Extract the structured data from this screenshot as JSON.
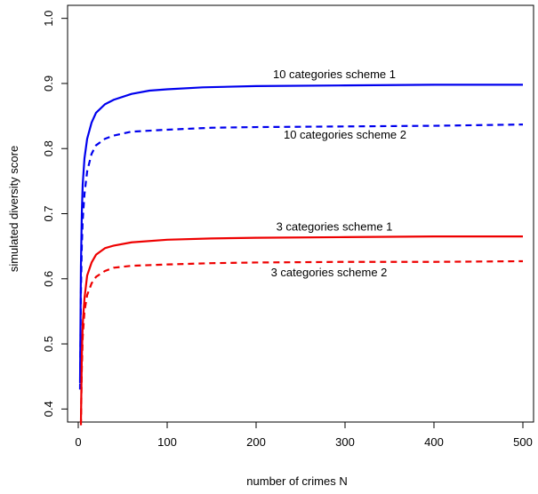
{
  "chart_data": {
    "type": "line",
    "title": "",
    "xlabel": "number of crimes N",
    "ylabel": "simulated diversity score",
    "xlim": [
      -12,
      512
    ],
    "ylim": [
      0.38,
      1.02
    ],
    "xticks": [
      0,
      100,
      200,
      300,
      400,
      500
    ],
    "yticks": [
      0.4,
      0.5,
      0.6,
      0.7,
      0.8,
      0.9,
      1.0
    ],
    "xtick_labels": [
      "0",
      "100",
      "200",
      "300",
      "400",
      "500"
    ],
    "ytick_labels": [
      "0.4",
      "0.5",
      "0.6",
      "0.7",
      "0.8",
      "0.9",
      "1.0"
    ],
    "grid": false,
    "legend": "none",
    "series": [
      {
        "name": "10 categories scheme 1",
        "color": "#0000ee",
        "dash": "solid",
        "label_at": {
          "x": 288,
          "y": 0.908
        },
        "points": [
          [
            2,
            0.44
          ],
          [
            3,
            0.62
          ],
          [
            4,
            0.7
          ],
          [
            5,
            0.745
          ],
          [
            7,
            0.785
          ],
          [
            10,
            0.815
          ],
          [
            15,
            0.84
          ],
          [
            20,
            0.855
          ],
          [
            30,
            0.868
          ],
          [
            40,
            0.875
          ],
          [
            60,
            0.884
          ],
          [
            80,
            0.889
          ],
          [
            100,
            0.891
          ],
          [
            140,
            0.894
          ],
          [
            200,
            0.896
          ],
          [
            300,
            0.897
          ],
          [
            400,
            0.898
          ],
          [
            500,
            0.898
          ]
        ]
      },
      {
        "name": "10 categories scheme 2",
        "color": "#0000ee",
        "dash": "dashed",
        "label_at": {
          "x": 300,
          "y": 0.815
        },
        "points": [
          [
            2,
            0.43
          ],
          [
            3,
            0.58
          ],
          [
            4,
            0.65
          ],
          [
            5,
            0.69
          ],
          [
            7,
            0.73
          ],
          [
            10,
            0.765
          ],
          [
            15,
            0.792
          ],
          [
            20,
            0.805
          ],
          [
            30,
            0.815
          ],
          [
            40,
            0.82
          ],
          [
            60,
            0.826
          ],
          [
            100,
            0.829
          ],
          [
            150,
            0.832
          ],
          [
            200,
            0.833
          ],
          [
            300,
            0.834
          ],
          [
            400,
            0.835
          ],
          [
            500,
            0.837
          ]
        ]
      },
      {
        "name": "3 categories scheme 1",
        "color": "#ee0000",
        "dash": "solid",
        "label_at": {
          "x": 288,
          "y": 0.674
        },
        "points": [
          [
            3,
            0.38
          ],
          [
            4,
            0.48
          ],
          [
            5,
            0.53
          ],
          [
            7,
            0.57
          ],
          [
            10,
            0.605
          ],
          [
            15,
            0.625
          ],
          [
            20,
            0.637
          ],
          [
            30,
            0.647
          ],
          [
            40,
            0.651
          ],
          [
            60,
            0.656
          ],
          [
            100,
            0.66
          ],
          [
            150,
            0.662
          ],
          [
            200,
            0.663
          ],
          [
            300,
            0.664
          ],
          [
            400,
            0.665
          ],
          [
            500,
            0.665
          ]
        ]
      },
      {
        "name": "3 categories scheme 2",
        "color": "#ee0000",
        "dash": "dashed",
        "label_at": {
          "x": 282,
          "y": 0.604
        },
        "points": [
          [
            3,
            0.375
          ],
          [
            4,
            0.46
          ],
          [
            5,
            0.51
          ],
          [
            7,
            0.55
          ],
          [
            10,
            0.575
          ],
          [
            15,
            0.593
          ],
          [
            20,
            0.603
          ],
          [
            30,
            0.612
          ],
          [
            40,
            0.617
          ],
          [
            60,
            0.62
          ],
          [
            100,
            0.622
          ],
          [
            150,
            0.624
          ],
          [
            200,
            0.625
          ],
          [
            300,
            0.626
          ],
          [
            400,
            0.626
          ],
          [
            500,
            0.627
          ]
        ]
      }
    ]
  }
}
